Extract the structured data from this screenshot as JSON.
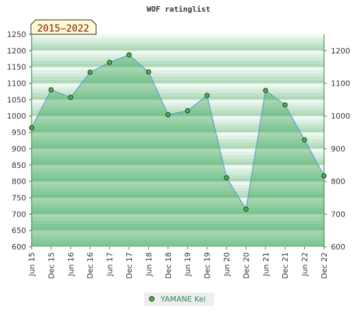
{
  "chart_data": {
    "type": "area",
    "title": "WOF ratinglist",
    "badge": "2015–2022",
    "categories": [
      "Jun 15",
      "Dec 15",
      "Jun 16",
      "Dec 16",
      "Jun 17",
      "Dec 17",
      "Jun 18",
      "Dec 18",
      "Jun 19",
      "Dec 19",
      "Jun 20",
      "Dec 20",
      "Jun 21",
      "Dec 21",
      "Jun 22",
      "Dec 22"
    ],
    "series": [
      {
        "name": "YAMANE Kei",
        "values": [
          964,
          1080,
          1057,
          1134,
          1164,
          1187,
          1135,
          1004,
          1016,
          1063,
          811,
          715,
          1078,
          1034,
          927,
          817
        ]
      }
    ],
    "ylim_left": [
      600,
      1250
    ],
    "yticks_left": [
      600,
      650,
      700,
      750,
      800,
      850,
      900,
      950,
      1000,
      1050,
      1100,
      1150,
      1200,
      1250
    ],
    "ylim_right": [
      600,
      1250
    ],
    "yticks_right": [
      600,
      700,
      800,
      900,
      1000,
      1100,
      1200
    ],
    "legend_position": "bottom-center",
    "colors": {
      "line": "#5b9bd5",
      "marker_fill": "#4caf50",
      "marker_stroke": "#1b3d1b",
      "fill": "#2e9e4a",
      "band_dark": "#acd9b8",
      "band_light": "#f0f8f1",
      "badge_bg": "#fffbd1",
      "badge_text": "#7a1212",
      "legend_bg": "#eeeeee",
      "legend_text": "#2e8b57"
    }
  }
}
